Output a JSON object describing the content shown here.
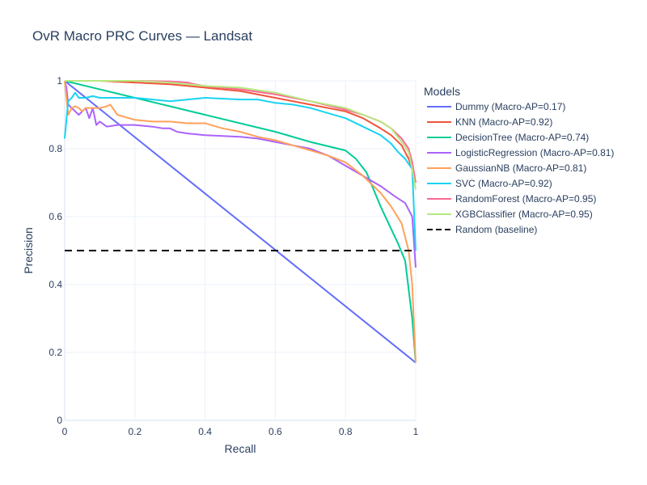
{
  "chart_data": {
    "type": "line",
    "title": "OvR Macro PRC Curves — Landsat",
    "xlabel": "Recall",
    "ylabel": "Precision",
    "xlim": [
      0,
      1
    ],
    "ylim": [
      0,
      1
    ],
    "xticks": [
      0,
      0.2,
      0.4,
      0.6,
      0.8,
      1
    ],
    "xtick_labels": [
      "0",
      "0.2",
      "0.4",
      "0.6",
      "0.8",
      "1"
    ],
    "yticks": [
      0,
      0.2,
      0.4,
      0.6,
      0.8,
      1
    ],
    "ytick_labels": [
      "0",
      "0.2",
      "0.4",
      "0.6",
      "0.8",
      "1"
    ],
    "grid": true,
    "legend_title": "Models",
    "legend_position": "right",
    "series": [
      {
        "name": "Dummy (Macro-AP=0.17)",
        "color": "#636efa",
        "dash": "solid",
        "x": [
          0,
          1
        ],
        "y": [
          1,
          0.17
        ]
      },
      {
        "name": "KNN (Macro-AP=0.92)",
        "color": "#EF553B",
        "dash": "solid",
        "x": [
          0,
          0.01,
          0.1,
          0.2,
          0.3,
          0.4,
          0.5,
          0.6,
          0.7,
          0.8,
          0.85,
          0.9,
          0.93,
          0.96,
          0.98,
          0.99,
          1.0
        ],
        "y": [
          1,
          1,
          1,
          0.995,
          0.99,
          0.98,
          0.97,
          0.95,
          0.93,
          0.91,
          0.89,
          0.86,
          0.84,
          0.81,
          0.77,
          0.74,
          0.7
        ]
      },
      {
        "name": "DecisionTree (Macro-AP=0.74)",
        "color": "#00cc96",
        "dash": "solid",
        "x": [
          0,
          0.2,
          0.4,
          0.6,
          0.7,
          0.8,
          0.83,
          0.86,
          0.9,
          0.95,
          0.97,
          0.99,
          1.0
        ],
        "y": [
          1,
          0.95,
          0.9,
          0.85,
          0.82,
          0.795,
          0.77,
          0.73,
          0.63,
          0.52,
          0.47,
          0.3,
          0.17
        ]
      },
      {
        "name": "LogisticRegression (Macro-AP=0.81)",
        "color": "#ab63fa",
        "dash": "solid",
        "x": [
          0,
          0.005,
          0.01,
          0.02,
          0.03,
          0.04,
          0.05,
          0.06,
          0.07,
          0.08,
          0.09,
          0.1,
          0.12,
          0.15,
          0.2,
          0.25,
          0.28,
          0.3,
          0.32,
          0.35,
          0.4,
          0.5,
          0.55,
          0.6,
          0.65,
          0.7,
          0.75,
          0.8,
          0.85,
          0.9,
          0.94,
          0.97,
          0.99,
          1.0
        ],
        "y": [
          1,
          0.98,
          0.93,
          0.92,
          0.91,
          0.9,
          0.91,
          0.92,
          0.89,
          0.92,
          0.87,
          0.88,
          0.865,
          0.87,
          0.87,
          0.865,
          0.86,
          0.86,
          0.85,
          0.845,
          0.84,
          0.835,
          0.83,
          0.82,
          0.81,
          0.8,
          0.78,
          0.75,
          0.72,
          0.69,
          0.66,
          0.64,
          0.6,
          0.45
        ]
      },
      {
        "name": "GaussianNB (Macro-AP=0.81)",
        "color": "#FFA15A",
        "dash": "solid",
        "x": [
          0,
          0.01,
          0.02,
          0.03,
          0.04,
          0.05,
          0.06,
          0.07,
          0.1,
          0.12,
          0.13,
          0.15,
          0.2,
          0.25,
          0.3,
          0.35,
          0.4,
          0.45,
          0.5,
          0.55,
          0.6,
          0.65,
          0.7,
          0.75,
          0.8,
          0.85,
          0.9,
          0.93,
          0.96,
          0.98,
          0.99,
          1.0
        ],
        "y": [
          1,
          0.9,
          0.92,
          0.925,
          0.92,
          0.91,
          0.92,
          0.92,
          0.92,
          0.925,
          0.93,
          0.9,
          0.885,
          0.88,
          0.88,
          0.875,
          0.875,
          0.86,
          0.85,
          0.835,
          0.825,
          0.81,
          0.795,
          0.78,
          0.76,
          0.72,
          0.67,
          0.63,
          0.58,
          0.5,
          0.4,
          0.17
        ]
      },
      {
        "name": "SVC (Macro-AP=0.92)",
        "color": "#19d3f3",
        "dash": "solid",
        "x": [
          0,
          0.01,
          0.02,
          0.03,
          0.04,
          0.06,
          0.08,
          0.1,
          0.15,
          0.2,
          0.25,
          0.3,
          0.35,
          0.4,
          0.5,
          0.55,
          0.6,
          0.65,
          0.7,
          0.75,
          0.8,
          0.85,
          0.9,
          0.93,
          0.95,
          0.97,
          0.99,
          1.0
        ],
        "y": [
          0.83,
          0.94,
          0.95,
          0.965,
          0.95,
          0.95,
          0.955,
          0.95,
          0.95,
          0.95,
          0.945,
          0.94,
          0.945,
          0.95,
          0.945,
          0.945,
          0.935,
          0.93,
          0.92,
          0.905,
          0.89,
          0.865,
          0.84,
          0.815,
          0.79,
          0.77,
          0.74,
          0.5
        ]
      },
      {
        "name": "RandomForest (Macro-AP=0.95)",
        "color": "#FF6692",
        "dash": "solid",
        "x": [
          0,
          0.05,
          0.1,
          0.2,
          0.3,
          0.35,
          0.37,
          0.4,
          0.5,
          0.6,
          0.7,
          0.8,
          0.85,
          0.9,
          0.93,
          0.96,
          0.98,
          0.99,
          1.0
        ],
        "y": [
          1,
          1,
          1,
          1,
          0.998,
          0.995,
          0.99,
          0.985,
          0.975,
          0.96,
          0.94,
          0.915,
          0.9,
          0.88,
          0.86,
          0.83,
          0.8,
          0.76,
          0.7
        ]
      },
      {
        "name": "XGBClassifier (Macro-AP=0.95)",
        "color": "#B6E880",
        "dash": "solid",
        "x": [
          0,
          0.1,
          0.2,
          0.3,
          0.4,
          0.5,
          0.6,
          0.7,
          0.8,
          0.85,
          0.9,
          0.93,
          0.96,
          0.98,
          0.99,
          1.0
        ],
        "y": [
          1,
          1,
          1,
          0.995,
          0.985,
          0.98,
          0.965,
          0.94,
          0.92,
          0.9,
          0.88,
          0.86,
          0.82,
          0.79,
          0.74,
          0.68
        ]
      },
      {
        "name": "Random (baseline)",
        "color": "#000000",
        "dash": "dash",
        "x": [
          0,
          1
        ],
        "y": [
          0.5,
          0.5
        ]
      }
    ]
  }
}
